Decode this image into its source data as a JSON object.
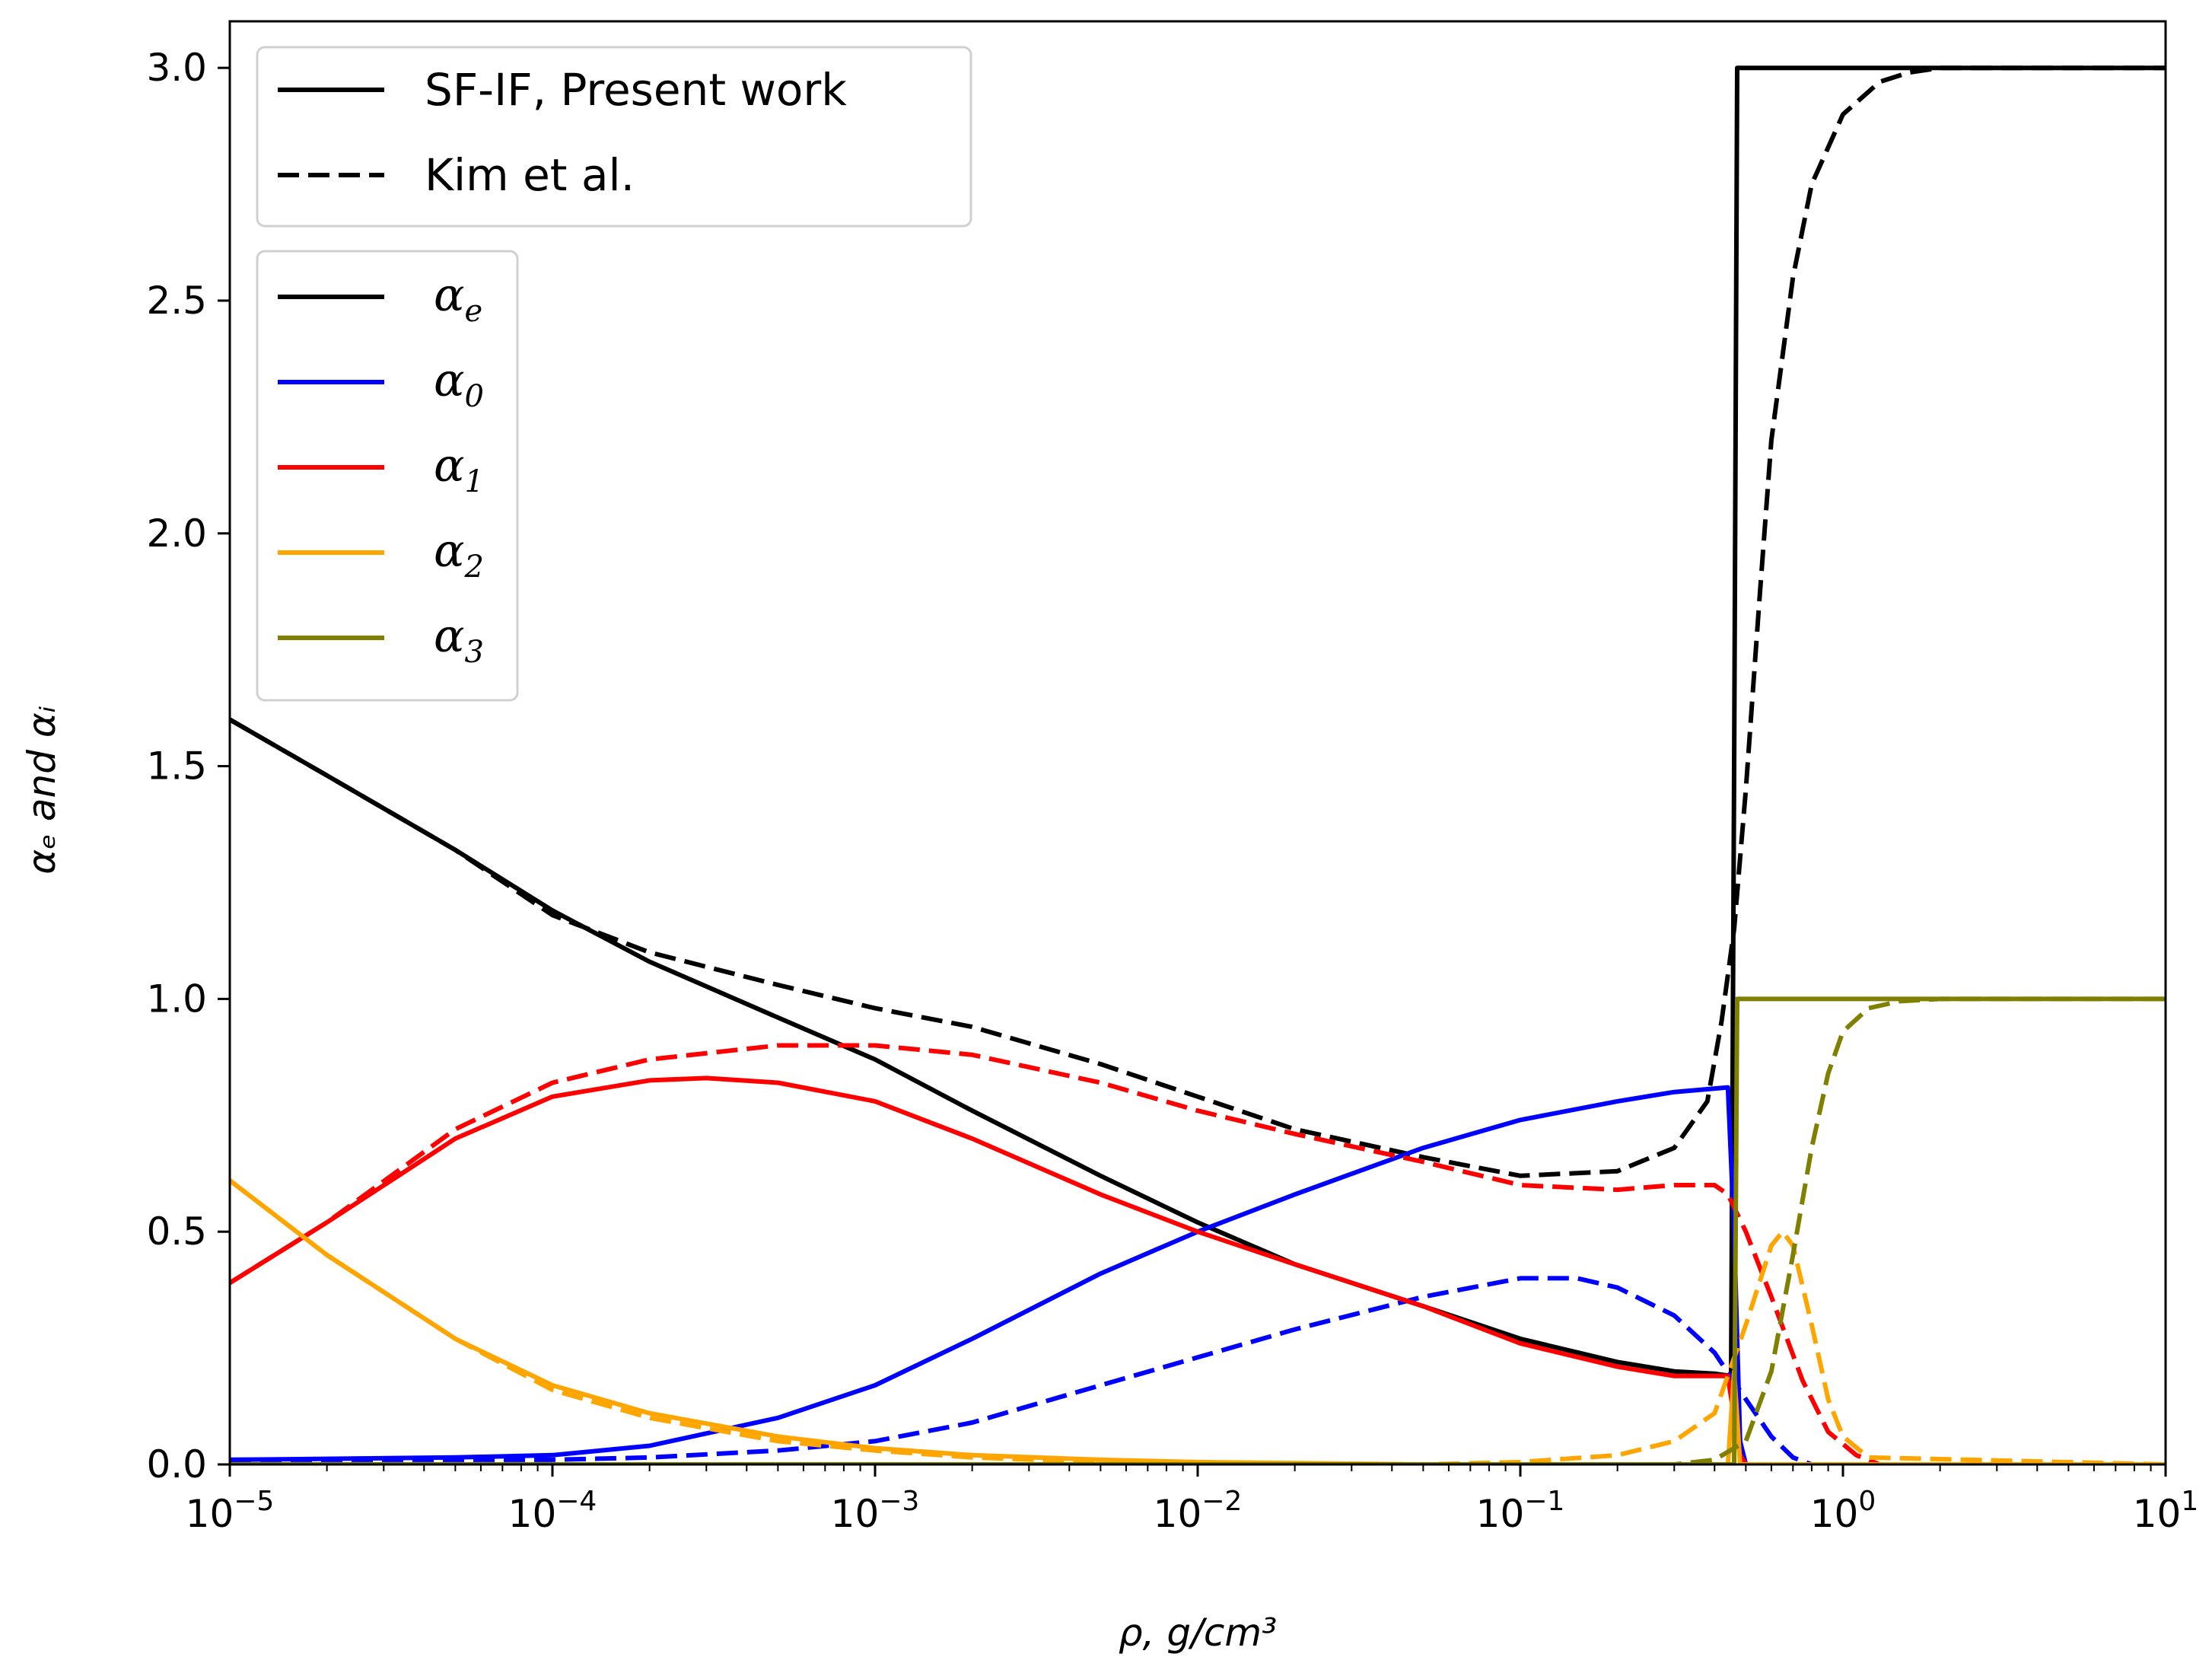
{
  "chart_data": {
    "type": "line",
    "title": "",
    "xlabel": "ρ, g/cm³",
    "ylabel": "αₑ and αᵢ",
    "xscale": "log",
    "xlim": [
      1e-05,
      10
    ],
    "ylim": [
      0.0,
      3.1
    ],
    "grid": false,
    "x_ticks": [
      {
        "value": 1e-05,
        "base": "10",
        "exp": "−5"
      },
      {
        "value": 0.0001,
        "base": "10",
        "exp": "−4"
      },
      {
        "value": 0.001,
        "base": "10",
        "exp": "−3"
      },
      {
        "value": 0.01,
        "base": "10",
        "exp": "−2"
      },
      {
        "value": 0.1,
        "base": "10",
        "exp": "−1"
      },
      {
        "value": 1,
        "base": "10",
        "exp": "0"
      },
      {
        "value": 10,
        "base": "10",
        "exp": "1"
      }
    ],
    "y_ticks": [
      {
        "value": 0.0,
        "label": "0.0"
      },
      {
        "value": 0.5,
        "label": "0.5"
      },
      {
        "value": 1.0,
        "label": "1.0"
      },
      {
        "value": 1.5,
        "label": "1.5"
      },
      {
        "value": 2.0,
        "label": "2.0"
      },
      {
        "value": 2.5,
        "label": "2.5"
      },
      {
        "value": 3.0,
        "label": "3.0"
      }
    ],
    "legend_style": {
      "placement": "top-left",
      "entries": [
        {
          "label": "SF-IF, Present work",
          "dash": "solid",
          "color": "#000000"
        },
        {
          "label": "Kim et al.",
          "dash": "dashed",
          "color": "#000000"
        }
      ]
    },
    "legend_species": {
      "placement": "upper-left",
      "entries": [
        {
          "symbol": "α",
          "sub": "e",
          "color": "#000000"
        },
        {
          "symbol": "α",
          "sub": "0",
          "color": "#0000ff"
        },
        {
          "symbol": "α",
          "sub": "1",
          "color": "#ff0000"
        },
        {
          "symbol": "α",
          "sub": "2",
          "color": "#ffa500"
        },
        {
          "symbol": "α",
          "sub": "3",
          "color": "#808000"
        }
      ]
    },
    "series": [
      {
        "name": "alpha_e SF-IF",
        "color": "#000000",
        "dash": "solid",
        "x": [
          1e-05,
          2e-05,
          5e-05,
          0.0001,
          0.0002,
          0.0005,
          0.001,
          0.002,
          0.005,
          0.01,
          0.02,
          0.05,
          0.1,
          0.2,
          0.3,
          0.4,
          0.45,
          0.46,
          0.47,
          0.5,
          1,
          10
        ],
        "y": [
          1.6,
          1.48,
          1.32,
          1.19,
          1.08,
          0.96,
          0.87,
          0.76,
          0.62,
          0.52,
          0.43,
          0.34,
          0.27,
          0.22,
          0.2,
          0.195,
          0.19,
          1.5,
          3.0,
          3.0,
          3.0,
          3.0
        ]
      },
      {
        "name": "alpha_e Kim",
        "color": "#000000",
        "dash": "dashed",
        "x": [
          1e-05,
          2e-05,
          5e-05,
          0.0001,
          0.0002,
          0.0005,
          0.001,
          0.002,
          0.005,
          0.01,
          0.02,
          0.05,
          0.1,
          0.2,
          0.3,
          0.38,
          0.42,
          0.46,
          0.5,
          0.55,
          0.6,
          0.7,
          0.8,
          1.0,
          1.3,
          1.6,
          2.0,
          10
        ],
        "y": [
          1.6,
          1.48,
          1.32,
          1.18,
          1.1,
          1.03,
          0.98,
          0.94,
          0.86,
          0.79,
          0.72,
          0.66,
          0.62,
          0.63,
          0.68,
          0.78,
          0.95,
          1.15,
          1.45,
          1.85,
          2.2,
          2.55,
          2.75,
          2.9,
          2.97,
          2.99,
          3.0,
          3.0
        ]
      },
      {
        "name": "alpha_0 SF-IF",
        "color": "#0000ff",
        "dash": "solid",
        "x": [
          1e-05,
          5e-05,
          0.0001,
          0.0002,
          0.0005,
          0.001,
          0.002,
          0.005,
          0.01,
          0.02,
          0.05,
          0.1,
          0.2,
          0.3,
          0.44,
          0.46,
          0.48,
          0.5,
          10
        ],
        "y": [
          0.01,
          0.015,
          0.02,
          0.04,
          0.1,
          0.17,
          0.27,
          0.41,
          0.5,
          0.58,
          0.68,
          0.74,
          0.78,
          0.8,
          0.81,
          0.5,
          0.05,
          0.0,
          0.0
        ]
      },
      {
        "name": "alpha_0 Kim",
        "color": "#0000ff",
        "dash": "dashed",
        "x": [
          1e-05,
          0.0001,
          0.0002,
          0.0005,
          0.001,
          0.002,
          0.005,
          0.01,
          0.02,
          0.05,
          0.1,
          0.15,
          0.2,
          0.3,
          0.4,
          0.5,
          0.6,
          0.7,
          0.8,
          10
        ],
        "y": [
          0.01,
          0.01,
          0.015,
          0.03,
          0.05,
          0.09,
          0.17,
          0.23,
          0.29,
          0.36,
          0.4,
          0.4,
          0.38,
          0.32,
          0.24,
          0.14,
          0.06,
          0.015,
          0.0,
          0.0
        ]
      },
      {
        "name": "alpha_1 SF-IF",
        "color": "#ff0000",
        "dash": "solid",
        "x": [
          1e-05,
          2e-05,
          5e-05,
          0.0001,
          0.0002,
          0.0003,
          0.0005,
          0.001,
          0.002,
          0.005,
          0.01,
          0.02,
          0.05,
          0.1,
          0.2,
          0.3,
          0.44,
          0.46,
          0.48,
          0.5,
          10
        ],
        "y": [
          0.39,
          0.52,
          0.7,
          0.79,
          0.825,
          0.83,
          0.82,
          0.78,
          0.7,
          0.58,
          0.5,
          0.43,
          0.34,
          0.26,
          0.21,
          0.19,
          0.19,
          0.1,
          0.02,
          0.0,
          0.0
        ]
      },
      {
        "name": "alpha_1 Kim",
        "color": "#ff0000",
        "dash": "dashed",
        "x": [
          1e-05,
          2e-05,
          5e-05,
          0.0001,
          0.0002,
          0.0005,
          0.001,
          0.002,
          0.005,
          0.01,
          0.02,
          0.05,
          0.1,
          0.2,
          0.3,
          0.4,
          0.44,
          0.5,
          0.6,
          0.75,
          0.9,
          1.1,
          1.3,
          10
        ],
        "y": [
          0.39,
          0.52,
          0.72,
          0.82,
          0.87,
          0.9,
          0.9,
          0.88,
          0.82,
          0.76,
          0.71,
          0.65,
          0.6,
          0.59,
          0.6,
          0.6,
          0.58,
          0.5,
          0.36,
          0.18,
          0.07,
          0.02,
          0.0,
          0.0
        ]
      },
      {
        "name": "alpha_2 SF-IF",
        "color": "#ffa500",
        "dash": "solid",
        "x": [
          1e-05,
          2e-05,
          5e-05,
          0.0001,
          0.0002,
          0.0005,
          0.001,
          0.002,
          0.005,
          0.01,
          0.05,
          0.1,
          0.44,
          0.46,
          0.47,
          0.48,
          10
        ],
        "y": [
          0.61,
          0.45,
          0.27,
          0.17,
          0.11,
          0.06,
          0.035,
          0.02,
          0.01,
          0.005,
          0.0,
          0.0,
          0.0,
          0.2,
          0.1,
          0.0,
          0.0
        ]
      },
      {
        "name": "alpha_2 Kim",
        "color": "#ffa500",
        "dash": "dashed",
        "x": [
          1e-05,
          2e-05,
          5e-05,
          0.0001,
          0.0002,
          0.0005,
          0.001,
          0.002,
          0.005,
          0.01,
          0.05,
          0.1,
          0.2,
          0.3,
          0.4,
          0.5,
          0.6,
          0.65,
          0.7,
          0.8,
          0.9,
          1.0,
          1.2,
          10
        ],
        "y": [
          0.61,
          0.45,
          0.27,
          0.16,
          0.1,
          0.05,
          0.03,
          0.015,
          0.005,
          0.0,
          0.0,
          0.005,
          0.02,
          0.05,
          0.11,
          0.3,
          0.47,
          0.5,
          0.47,
          0.3,
          0.14,
          0.06,
          0.015,
          0.0
        ]
      },
      {
        "name": "alpha_3 SF-IF",
        "color": "#808000",
        "dash": "solid",
        "x": [
          1e-05,
          0.46,
          0.47,
          0.5,
          10
        ],
        "y": [
          0.0,
          0.0,
          1.0,
          1.0,
          1.0
        ]
      },
      {
        "name": "alpha_3 Kim",
        "color": "#808000",
        "dash": "dashed",
        "x": [
          1e-05,
          0.3,
          0.4,
          0.5,
          0.6,
          0.7,
          0.8,
          0.9,
          1.0,
          1.2,
          1.5,
          2.0,
          10
        ],
        "y": [
          0.0,
          0.0,
          0.01,
          0.05,
          0.2,
          0.45,
          0.68,
          0.84,
          0.93,
          0.98,
          0.995,
          1.0,
          1.0
        ]
      }
    ]
  }
}
